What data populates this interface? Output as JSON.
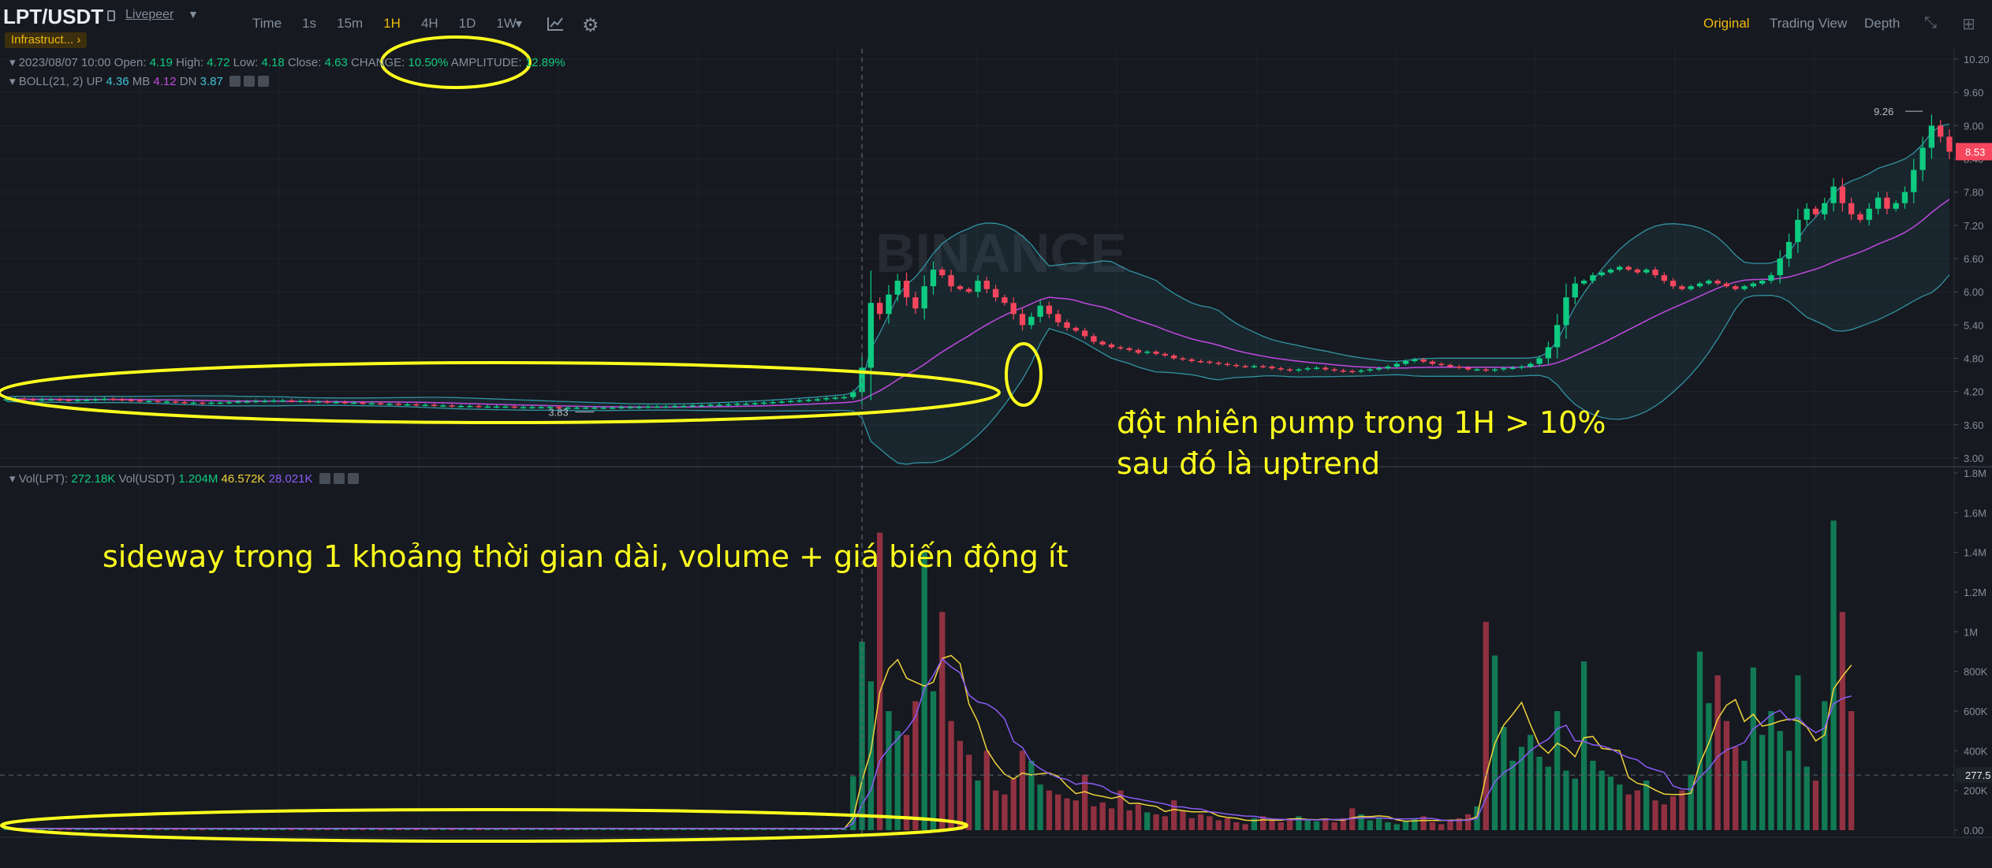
{
  "header": {
    "pair": "LPT/USDT",
    "coin_name": "Livepeer",
    "category_tag": "Infrastruct...",
    "intervals": [
      {
        "label": "Time",
        "active": false
      },
      {
        "label": "1s",
        "active": false
      },
      {
        "label": "15m",
        "active": false
      },
      {
        "label": "1H",
        "active": true
      },
      {
        "label": "4H",
        "active": false
      },
      {
        "label": "1D",
        "active": false
      },
      {
        "label": "1W",
        "active": false
      }
    ],
    "views": [
      {
        "label": "Original",
        "active": true
      },
      {
        "label": "Trading View",
        "active": false
      },
      {
        "label": "Depth",
        "active": false
      }
    ]
  },
  "ohlc": {
    "date": "2023/08/07 10:00",
    "open_label": "Open:",
    "open": "4.19",
    "high_label": "High:",
    "high": "4.72",
    "low_label": "Low:",
    "low": "4.18",
    "close_label": "Close:",
    "close": "4.63",
    "change_label": "CHANGE:",
    "change": "10.50%",
    "amplitude_label": "AMPLITUDE:",
    "amplitude": "12.89%"
  },
  "boll": {
    "label": "BOLL(21, 2)",
    "up_label": "UP",
    "up": "4.36",
    "mb_label": "MB",
    "mb": "4.12",
    "dn_label": "DN",
    "dn": "3.87"
  },
  "vol_legend": {
    "lpt_label": "Vol(LPT):",
    "lpt": "272.18K",
    "usdt_label": "Vol(USDT)",
    "usdt": "1.204M",
    "ma1": "46.572K",
    "ma2": "28.021K"
  },
  "watermark": "BINANCE",
  "annotations": {
    "pump_line1": "đột nhiên pump trong 1H > 10%",
    "pump_line2": "sau đó là uptrend",
    "sideway": "sideway trong 1 khoảng thời gian dài, volume + giá biến động ít"
  },
  "colors": {
    "up": "#0ecb81",
    "down": "#f6465d",
    "accent": "#f0b90b",
    "annotation": "#ffff1e",
    "boll_mb": "#c149e0",
    "boll_band": "#3ec3d7",
    "vol_ma1": "#f0d33c",
    "vol_ma2": "#8b5cf6"
  },
  "chart_data": [
    {
      "type": "candlestick",
      "title": "LPT/USDT 1H",
      "price_axis_ticks": [
        "10.20",
        "9.60",
        "9.00",
        "8.40",
        "7.80",
        "7.20",
        "6.60",
        "6.00",
        "5.40",
        "4.80",
        "4.20",
        "3.60",
        "3.00"
      ],
      "ylim": [
        2.9,
        10.3
      ],
      "current_price": "8.53",
      "max_label": "9.26",
      "min_label": "3.83",
      "close_series": [
        4.06,
        4.07,
        4.06,
        4.05,
        4.06,
        4.06,
        4.05,
        4.04,
        4.05,
        4.05,
        4.06,
        4.07,
        4.06,
        4.05,
        4.04,
        4.03,
        4.03,
        4.02,
        4.02,
        4.01,
        4.0,
        4.0,
        3.99,
        4.0,
        4.0,
        4.01,
        4.02,
        4.02,
        4.03,
        4.03,
        4.04,
        4.04,
        4.03,
        4.03,
        4.02,
        4.02,
        4.01,
        4.01,
        4.0,
        4.0,
        3.99,
        3.99,
        3.98,
        3.98,
        3.97,
        3.97,
        3.96,
        3.96,
        3.95,
        3.95,
        3.94,
        3.94,
        3.94,
        3.93,
        3.93,
        3.93,
        3.93,
        3.92,
        3.92,
        3.92,
        3.92,
        3.92,
        3.91,
        3.91,
        3.91,
        3.91,
        3.91,
        3.91,
        3.91,
        3.92,
        3.92,
        3.92,
        3.93,
        3.93,
        3.93,
        3.94,
        3.94,
        3.95,
        3.95,
        3.96,
        3.96,
        3.97,
        3.98,
        3.98,
        3.99,
        4.0,
        4.01,
        4.02,
        4.03,
        4.04,
        4.05,
        4.06,
        4.08,
        4.09,
        4.1,
        4.19,
        4.63,
        5.8,
        5.6,
        5.95,
        6.2,
        5.9,
        5.7,
        6.1,
        6.4,
        6.3,
        6.1,
        6.05,
        6.0,
        6.2,
        6.05,
        5.9,
        5.8,
        5.6,
        5.4,
        5.55,
        5.75,
        5.6,
        5.45,
        5.35,
        5.3,
        5.2,
        5.1,
        5.05,
        5.0,
        4.98,
        4.95,
        4.9,
        4.92,
        4.88,
        4.85,
        4.8,
        4.78,
        4.75,
        4.74,
        4.72,
        4.7,
        4.68,
        4.66,
        4.65,
        4.66,
        4.65,
        4.62,
        4.6,
        4.58,
        4.6,
        4.62,
        4.63,
        4.6,
        4.58,
        4.57,
        4.56,
        4.58,
        4.6,
        4.62,
        4.65,
        4.7,
        4.75,
        4.78,
        4.74,
        4.7,
        4.68,
        4.65,
        4.63,
        4.6,
        4.6,
        4.58,
        4.6,
        4.62,
        4.63,
        4.65,
        4.7,
        4.8,
        5.0,
        5.4,
        5.9,
        6.15,
        6.2,
        6.3,
        6.35,
        6.4,
        6.45,
        6.4,
        6.35,
        6.4,
        6.3,
        6.2,
        6.1,
        6.05,
        6.1,
        6.15,
        6.2,
        6.15,
        6.1,
        6.05,
        6.1,
        6.15,
        6.2,
        6.3,
        6.6,
        6.9,
        7.3,
        7.5,
        7.4,
        7.6,
        7.9,
        7.6,
        7.4,
        7.3,
        7.5,
        7.7,
        7.5,
        7.6,
        7.8,
        8.2,
        8.6,
        9.0,
        8.8,
        8.53
      ],
      "boll": {
        "period": 21,
        "stddev": 2
      }
    },
    {
      "type": "bar",
      "title": "Vol(LPT)",
      "volume_axis_ticks": [
        "1.8M",
        "1.6M",
        "1.4M",
        "1.2M",
        "1M",
        "800K",
        "600K",
        "400K",
        "200K",
        "0.00"
      ],
      "ylim": [
        0,
        1800000
      ],
      "current_volume_label": "277.5",
      "volumes": [
        9000,
        8000,
        7000,
        9000,
        8500,
        7500,
        8000,
        9000,
        8000,
        7000,
        8000,
        9000,
        7500,
        8500,
        8000,
        7000,
        9000,
        8000,
        7500,
        8000,
        9000,
        7000,
        8000,
        8500,
        9000,
        8000,
        7000,
        8000,
        9000,
        8000,
        7500,
        8000,
        9000,
        8000,
        7000,
        8500,
        8000,
        9000,
        7500,
        8000,
        9000,
        8000,
        7000,
        8000,
        8500,
        9000,
        8000,
        7500,
        8000,
        9000,
        7000,
        8000,
        8500,
        8000,
        7000,
        9000,
        8000,
        7500,
        8000,
        9000,
        8000,
        7000,
        8000,
        8500,
        9000,
        8000,
        7500,
        8000,
        9000,
        7000,
        8000,
        8500,
        9000,
        8000,
        7000,
        8000,
        9000,
        8000,
        7500,
        8000,
        9000,
        8000,
        7000,
        8500,
        8000,
        9000,
        7500,
        8000,
        9000,
        8000,
        7000,
        8000,
        8500,
        9000,
        8000,
        272180,
        950000,
        750000,
        1500000,
        600000,
        500000,
        480000,
        650000,
        1400000,
        700000,
        1100000,
        550000,
        450000,
        380000,
        250000,
        400000,
        200000,
        180000,
        260000,
        400000,
        350000,
        230000,
        200000,
        180000,
        160000,
        150000,
        280000,
        120000,
        140000,
        110000,
        200000,
        100000,
        130000,
        90000,
        80000,
        70000,
        150000,
        100000,
        60000,
        80000,
        70000,
        50000,
        60000,
        40000,
        30000,
        60000,
        70000,
        50000,
        40000,
        60000,
        70000,
        50000,
        45000,
        55000,
        40000,
        60000,
        110000,
        80000,
        50000,
        60000,
        40000,
        30000,
        45000,
        60000,
        70000,
        40000,
        30000,
        50000,
        60000,
        80000,
        120000,
        1050000,
        880000,
        520000,
        350000,
        420000,
        480000,
        370000,
        320000,
        600000,
        300000,
        260000,
        850000,
        350000,
        300000,
        270000,
        230000,
        180000,
        200000,
        250000,
        150000,
        130000,
        170000,
        200000,
        280000,
        900000,
        640000,
        780000,
        550000,
        420000,
        350000,
        820000,
        480000,
        600000,
        500000,
        400000,
        780000,
        320000,
        250000,
        650000,
        1560000,
        1100000,
        600000
      ]
    }
  ]
}
